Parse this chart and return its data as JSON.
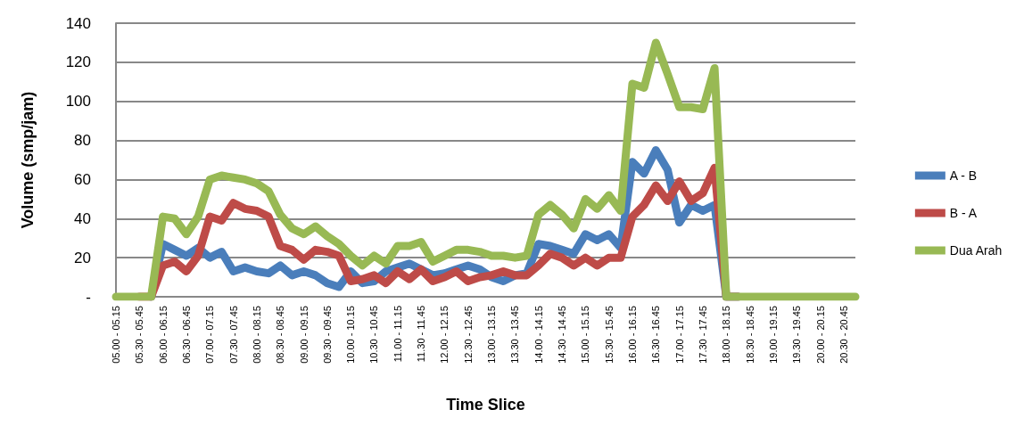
{
  "chart_data": {
    "type": "line",
    "xlabel": "Time Slice",
    "ylabel": "Volume (smp/jam)",
    "categories": [
      "05.00 - 05.15",
      null,
      "05.30 - 05.45",
      null,
      "06.00 - 06.15",
      null,
      "06.30 - 06.45",
      null,
      "07.00 - 07.15",
      null,
      "07.30 - 07.45",
      null,
      "08.00 - 08.15",
      null,
      "08.30 - 08.45",
      null,
      "09.00 - 09.15",
      null,
      "09.30 - 09.45",
      null,
      "10.00 - 10.15",
      null,
      "10.30 - 10.45",
      null,
      "11.00 - 11.15",
      null,
      "11.30 - 11.45",
      null,
      "12.00 - 12.15",
      null,
      "12.30 - 12.45",
      null,
      "13.00 - 13.15",
      null,
      "13.30 - 13.45",
      null,
      "14.00 - 14.15",
      null,
      "14.30 - 14.45",
      null,
      "15.00 - 15.15",
      null,
      "15.30 - 15.45",
      null,
      "16.00 - 16.15",
      null,
      "16.30 - 16.45",
      null,
      "17.00 - 17.15",
      null,
      "17.30 - 17.45",
      null,
      "18.00 - 18.15",
      null,
      "18.30 - 18.45",
      null,
      "19.00 - 19.15",
      null,
      "19.30 - 19.45",
      null,
      "20.00 - 20.15",
      null,
      "20.30 - 20.45",
      null
    ],
    "series": [
      {
        "name": "A - B",
        "color": "#4a7ebb",
        "values": [
          null,
          null,
          null,
          0,
          27,
          24,
          21,
          25,
          20,
          23,
          13,
          15,
          13,
          12,
          16,
          11,
          13,
          11,
          7,
          5,
          13,
          7,
          8,
          13,
          15,
          17,
          14,
          11,
          12,
          14,
          16,
          14,
          10,
          8,
          11,
          12,
          27,
          26,
          24,
          22,
          32,
          29,
          32,
          25,
          69,
          63,
          75,
          65,
          38,
          47,
          44,
          47,
          0,
          0,
          null,
          null,
          null,
          null,
          null,
          null,
          null,
          null,
          null,
          null
        ]
      },
      {
        "name": "B - A",
        "color": "#be4b48",
        "values": [
          null,
          null,
          0,
          0,
          16,
          18,
          13,
          21,
          41,
          39,
          48,
          45,
          44,
          41,
          26,
          24,
          19,
          24,
          23,
          21,
          8,
          9,
          11,
          7,
          13,
          9,
          14,
          8,
          10,
          13,
          8,
          10,
          11,
          13,
          11,
          11,
          16,
          22,
          20,
          16,
          20,
          16,
          20,
          20,
          41,
          47,
          57,
          49,
          59,
          49,
          53,
          66,
          0,
          0,
          null,
          null,
          null,
          null,
          null,
          null,
          null,
          null,
          null,
          null
        ]
      },
      {
        "name": "Dua Arah",
        "color": "#98b954",
        "values": [
          0,
          0,
          0,
          0,
          41,
          40,
          32,
          41,
          60,
          62,
          61,
          60,
          58,
          54,
          42,
          35,
          32,
          36,
          31,
          27,
          21,
          16,
          21,
          17,
          26,
          26,
          28,
          18,
          21,
          24,
          24,
          23,
          21,
          21,
          20,
          21,
          42,
          47,
          42,
          35,
          50,
          45,
          52,
          44,
          109,
          107,
          130,
          114,
          97,
          97,
          96,
          117,
          0,
          0,
          0,
          0,
          0,
          0,
          0,
          0,
          0,
          0,
          0,
          0
        ]
      }
    ],
    "ylim": [
      0,
      140
    ],
    "yticks": [
      {
        "value": 0,
        "label": "-"
      },
      20,
      40,
      60,
      80,
      100,
      120,
      140
    ],
    "grid": "y",
    "legend": "right",
    "marker": "none",
    "line_style": "solid"
  }
}
